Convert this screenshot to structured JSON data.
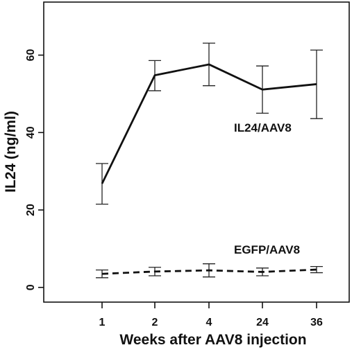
{
  "chart_data": {
    "type": "line",
    "categories": [
      "1",
      "2",
      "4",
      "24",
      "36"
    ],
    "xlabel": "Weeks after AAV8 injection",
    "ylabel": "IL24 (ng/ml)",
    "ylim": [
      -3.8,
      73.7
    ],
    "yticks": [
      0,
      20,
      40,
      60
    ],
    "grid": false,
    "series": [
      {
        "name": "IL24/AAV8",
        "style": "solid",
        "values": [
          26.8,
          54.8,
          57.6,
          51.1,
          52.5
        ],
        "err_low": [
          21.5,
          50.8,
          52.1,
          45.0,
          43.6
        ],
        "err_high": [
          32.0,
          58.6,
          63.1,
          57.2,
          61.3
        ]
      },
      {
        "name": "EGFP/AAV8",
        "style": "dashed",
        "values": [
          3.5,
          4.1,
          4.4,
          4.0,
          4.6
        ],
        "err_low": [
          2.5,
          3.0,
          2.7,
          3.0,
          3.8
        ],
        "err_high": [
          4.5,
          5.2,
          6.1,
          5.0,
          5.4
        ]
      }
    ]
  }
}
